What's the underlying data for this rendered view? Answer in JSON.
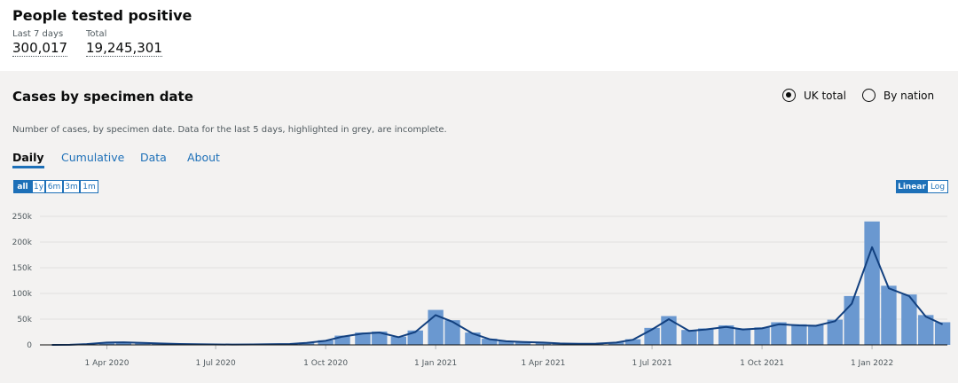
{
  "header": {
    "title": "People tested positive",
    "metrics": [
      {
        "label": "Last 7 days",
        "value": "300,017"
      },
      {
        "label": "Total",
        "value": "19,245,301"
      }
    ]
  },
  "card": {
    "title": "Cases by specimen date",
    "options": [
      "UK total",
      "By nation"
    ],
    "selected_option": 0,
    "description": "Number of cases, by specimen date. Data for the last 5 days, highlighted in grey, are incomplete.",
    "tabs": [
      "Daily",
      "Cumulative",
      "Data",
      "About"
    ],
    "active_tab": 0,
    "ranges": [
      "all",
      "1y",
      "6m",
      "3m",
      "1m"
    ],
    "active_range": 0,
    "scales": [
      "Linear",
      "Log"
    ],
    "active_scale": 0
  },
  "chart_data": {
    "type": "bar",
    "x": [
      "2020-02-15",
      "2020-03-01",
      "2020-03-15",
      "2020-04-01",
      "2020-04-15",
      "2020-05-01",
      "2020-05-15",
      "2020-06-01",
      "2020-06-15",
      "2020-07-01",
      "2020-07-15",
      "2020-08-01",
      "2020-08-15",
      "2020-09-01",
      "2020-09-15",
      "2020-10-01",
      "2020-10-15",
      "2020-11-01",
      "2020-11-15",
      "2020-12-01",
      "2020-12-15",
      "2021-01-01",
      "2021-01-15",
      "2021-02-01",
      "2021-02-15",
      "2021-03-01",
      "2021-03-15",
      "2021-04-01",
      "2021-04-15",
      "2021-05-01",
      "2021-05-15",
      "2021-06-01",
      "2021-06-15",
      "2021-07-01",
      "2021-07-15",
      "2021-08-01",
      "2021-08-15",
      "2021-09-01",
      "2021-09-15",
      "2021-10-01",
      "2021-10-15",
      "2021-11-01",
      "2021-11-15",
      "2021-12-01",
      "2021-12-15",
      "2022-01-01",
      "2022-01-15",
      "2022-02-01",
      "2022-02-15",
      "2022-03-01"
    ],
    "series": [
      {
        "kind": "bar",
        "color": "#6a98d0",
        "values": [
          0,
          150,
          1800,
          5000,
          5200,
          4200,
          3000,
          1900,
          1300,
          850,
          750,
          950,
          1300,
          2000,
          4500,
          9000,
          18000,
          24000,
          26000,
          16000,
          28000,
          68000,
          48000,
          24000,
          12000,
          7500,
          6000,
          5000,
          3000,
          2400,
          2600,
          5000,
          11000,
          33000,
          56000,
          29000,
          32000,
          38000,
          32000,
          34000,
          44000,
          40000,
          39000,
          49000,
          95000,
          240000,
          115000,
          98000,
          58000,
          44000
        ]
      },
      {
        "kind": "line",
        "color": "#12407f",
        "values": [
          0,
          100,
          1500,
          4500,
          5000,
          4000,
          2800,
          1800,
          1200,
          800,
          700,
          900,
          1200,
          1800,
          4000,
          8000,
          16000,
          22000,
          24000,
          15000,
          25000,
          58000,
          45000,
          22000,
          11000,
          7000,
          5500,
          4500,
          2800,
          2200,
          2400,
          4500,
          10000,
          30000,
          50000,
          27000,
          30000,
          35000,
          30000,
          32000,
          40000,
          38000,
          37000,
          46000,
          80000,
          190000,
          110000,
          95000,
          55000,
          40000
        ]
      }
    ],
    "xlim": [
      "2020-02-05",
      "2022-03-05"
    ],
    "xticks": [
      {
        "value": "2020-04-01",
        "label": "1 Apr 2020"
      },
      {
        "value": "2020-07-01",
        "label": "1 Jul 2020"
      },
      {
        "value": "2020-10-01",
        "label": "1 Oct 2020"
      },
      {
        "value": "2021-01-01",
        "label": "1 Jan 2021"
      },
      {
        "value": "2021-04-01",
        "label": "1 Apr 2021"
      },
      {
        "value": "2021-07-01",
        "label": "1 Jul 2021"
      },
      {
        "value": "2021-10-01",
        "label": "1 Oct 2021"
      },
      {
        "value": "2022-01-01",
        "label": "1 Jan 2022"
      }
    ],
    "ylim": [
      0,
      275000
    ],
    "yticks": [
      0,
      {
        "value": 50000,
        "label": "50k"
      },
      {
        "value": 100000,
        "label": "100k"
      },
      {
        "value": 150000,
        "label": "150k"
      },
      {
        "value": 200000,
        "label": "200k"
      },
      {
        "value": 250000,
        "label": "250k"
      }
    ],
    "grid": true
  }
}
